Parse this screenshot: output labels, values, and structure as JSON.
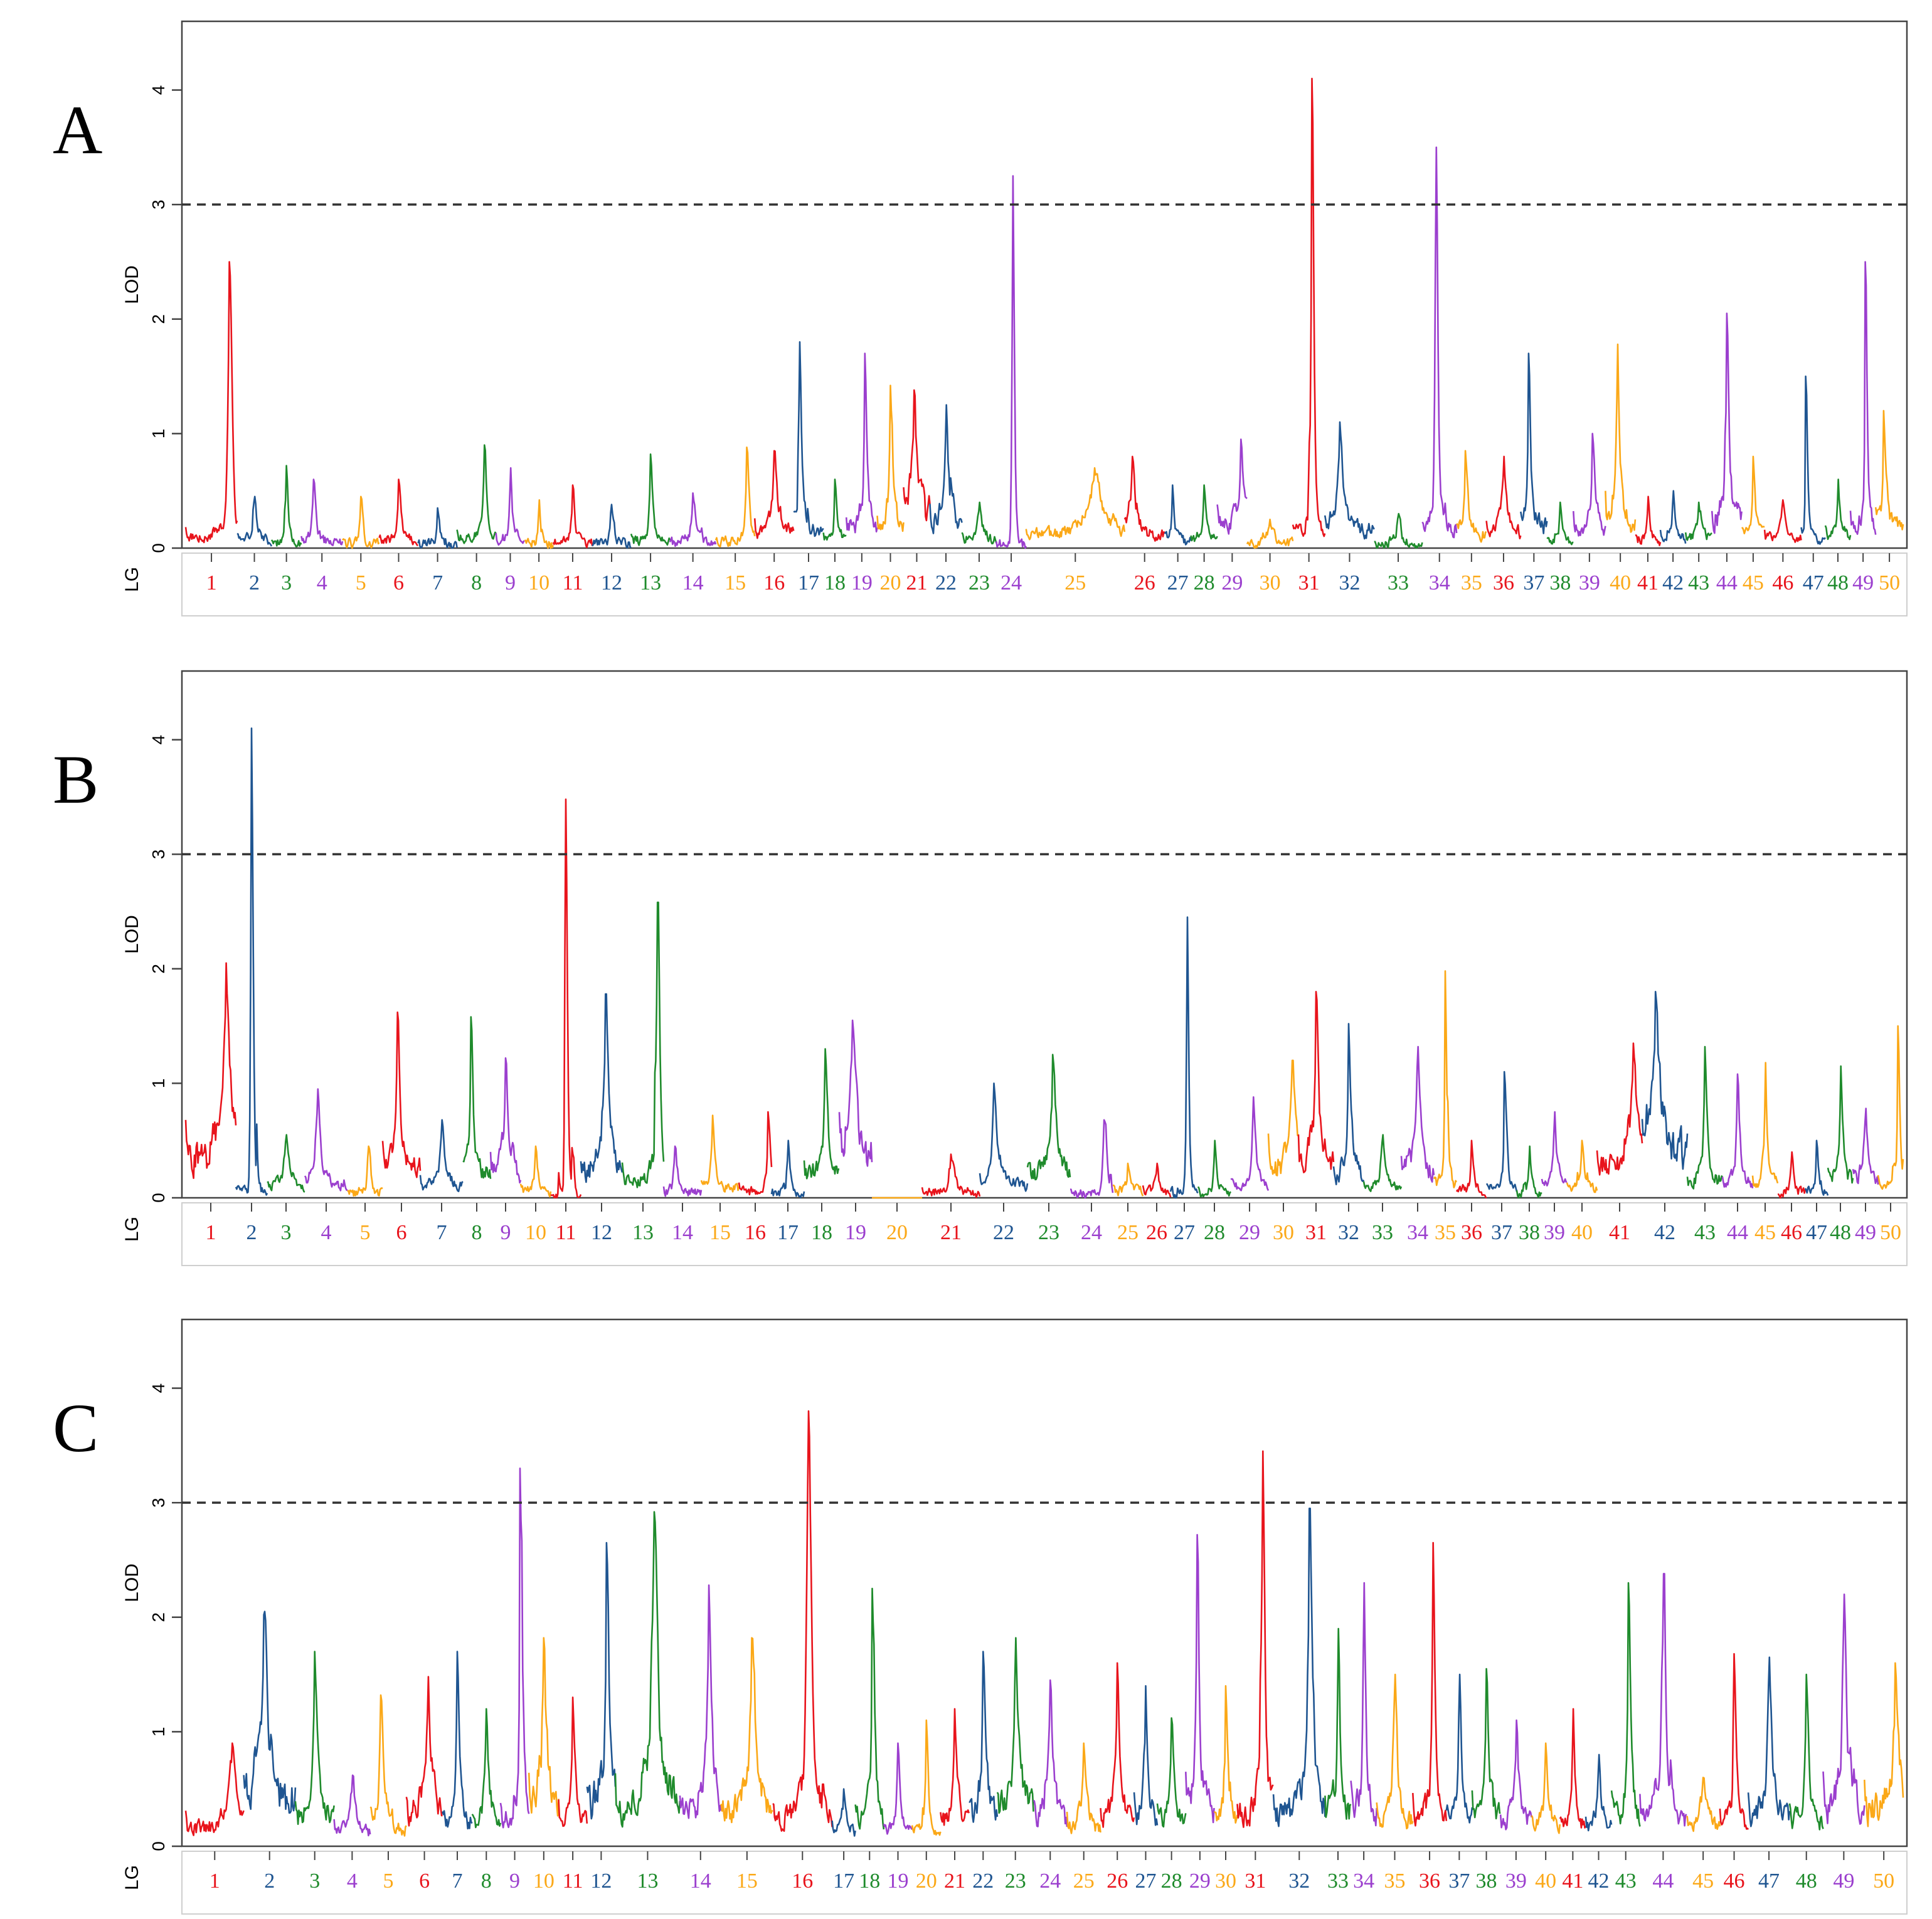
{
  "figure": {
    "description_free": true
  },
  "palette": [
    "#e8141c",
    "#1f5591",
    "#1f8b2c",
    "#9b3fce",
    "#fba817"
  ],
  "chart_data": [
    {
      "type": "line",
      "panel": "A",
      "ylabel": "LOD",
      "xlabel": "LG",
      "ylim": [
        0,
        4.6
      ],
      "yticks": [
        0,
        1,
        2,
        3,
        4
      ],
      "threshold": 3,
      "lg_labels": [
        "1",
        "2",
        "3",
        "4",
        "5",
        "6",
        "7",
        "8",
        "9",
        "10",
        "11",
        "12",
        "13",
        "14",
        "15",
        "16",
        "17",
        "18",
        "19",
        "20",
        "21",
        "22",
        "23",
        "24",
        "25",
        "26",
        "27",
        "28",
        "29",
        "30",
        "31",
        "32",
        "33",
        "34",
        "35",
        "36",
        "37",
        "38",
        "39",
        "40",
        "41",
        "42",
        "43",
        "44",
        "45",
        "46",
        "47",
        "48",
        "49",
        "50"
      ],
      "lg_widths": [
        4.5,
        3,
        2.6,
        3.6,
        3.2,
        3.4,
        3.4,
        3.4,
        2.5,
        2.5,
        3.4,
        3.4,
        3.4,
        4,
        3.4,
        3.4,
        2.6,
        2,
        2.7,
        2.3,
        2.3,
        2.8,
        3,
        2.6,
        8.6,
        3.5,
        2.3,
        2.3,
        2.6,
        4,
        2.8,
        4.3,
        4.2,
        3,
        2.6,
        3,
        2.3,
        2.3,
        2.8,
        2.6,
        2.2,
        2.2,
        2.3,
        2.6,
        2,
        3.2,
        2.1,
        2.2,
        2.2,
        2.4
      ],
      "peaks": [
        2.5,
        0.45,
        0.72,
        0.6,
        0.45,
        0.6,
        0.35,
        0.9,
        0.7,
        0.42,
        0.55,
        0.38,
        0.82,
        0.48,
        0.88,
        0.85,
        1.8,
        0.6,
        1.7,
        1.42,
        1.38,
        1.25,
        0.4,
        3.25,
        0.7,
        0.8,
        0.55,
        0.55,
        0.95,
        0.25,
        4.1,
        1.1,
        0.3,
        3.5,
        0.85,
        0.8,
        1.7,
        0.4,
        1.0,
        1.78,
        0.45,
        0.5,
        0.4,
        2.05,
        0.8,
        0.42,
        1.5,
        0.6,
        2.5,
        1.2
      ],
      "peak_positions": [
        0.85,
        0.5,
        0.5,
        0.3,
        0.5,
        0.5,
        0.5,
        0.7,
        0.5,
        0.5,
        0.5,
        0.5,
        0.5,
        0.5,
        0.8,
        0.5,
        0.2,
        0.5,
        0.6,
        0.5,
        0.4,
        0.5,
        0.5,
        0.55,
        0.7,
        0.2,
        0.3,
        0.5,
        0.8,
        0.5,
        0.6,
        0.3,
        0.5,
        0.4,
        0.3,
        0.5,
        0.3,
        0.5,
        0.6,
        0.4,
        0.5,
        0.5,
        0.5,
        0.5,
        0.5,
        0.5,
        0.2,
        0.5,
        0.6,
        0.3
      ],
      "base_levels": [
        0.25,
        0.15,
        0.1,
        0.12,
        0.08,
        0.15,
        0.08,
        0.2,
        0.15,
        0.08,
        0.1,
        0.08,
        0.15,
        0.12,
        0.15,
        0.35,
        0.4,
        0.2,
        0.45,
        0.5,
        0.8,
        0.5,
        0.18,
        0.05,
        0.3,
        0.3,
        0.15,
        0.2,
        0.5,
        0.1,
        0.35,
        0.4,
        0.08,
        0.4,
        0.3,
        0.35,
        0.5,
        0.15,
        0.4,
        0.6,
        0.15,
        0.2,
        0.2,
        0.6,
        0.3,
        0.2,
        0.2,
        0.25,
        0.4,
        0.45
      ]
    },
    {
      "type": "line",
      "panel": "B",
      "ylabel": "LOD",
      "xlabel": "LG",
      "ylim": [
        0,
        4.6
      ],
      "yticks": [
        0,
        1,
        2,
        3,
        4
      ],
      "threshold": 3,
      "lg_labels": [
        "1",
        "2",
        "3",
        "4",
        "5",
        "6",
        "7",
        "8",
        "9",
        "10",
        "11",
        "12",
        "13",
        "14",
        "15",
        "16",
        "17",
        "18",
        "19",
        "20",
        "21",
        "22",
        "23",
        "24",
        "25",
        "26",
        "27",
        "28",
        "29",
        "30",
        "31",
        "32",
        "33",
        "34",
        "35",
        "36",
        "37",
        "38",
        "39",
        "40",
        "41",
        "42",
        "43",
        "44",
        "45",
        "46",
        "47",
        "48",
        "49",
        "50"
      ],
      "lg_widths": [
        4,
        2.5,
        3,
        3.4,
        2.8,
        3,
        3.4,
        2.2,
        2.4,
        2.4,
        2.4,
        3.3,
        3.3,
        3,
        3,
        2.6,
        2.6,
        2.8,
        2.6,
        4,
        4.6,
        3.8,
        3.4,
        3.4,
        2.4,
        2.2,
        2.2,
        2.6,
        3,
        2.4,
        2.8,
        2.4,
        3,
        2.6,
        1.8,
        2.4,
        2.4,
        2,
        2,
        2.4,
        3.6,
        3.6,
        2.8,
        2.4,
        2,
        2.2,
        1.8,
        2,
        2,
        2
      ],
      "peaks": [
        2.05,
        4.1,
        0.55,
        0.95,
        0.45,
        1.62,
        0.68,
        1.58,
        1.22,
        0.45,
        3.48,
        1.78,
        2.58,
        0.45,
        0.72,
        0.75,
        0.5,
        1.3,
        1.55,
        0.0,
        0.38,
        1.0,
        1.25,
        0.68,
        0.3,
        0.3,
        2.45,
        0.5,
        0.88,
        1.2,
        1.8,
        1.52,
        0.55,
        1.32,
        1.98,
        0.5,
        1.1,
        0.45,
        0.75,
        0.5,
        1.35,
        1.8,
        1.32,
        1.08,
        1.18,
        0.4,
        0.5,
        1.15,
        0.78,
        1.5
      ],
      "peak_positions": [
        0.8,
        0.5,
        0.5,
        0.3,
        0.6,
        0.4,
        0.5,
        0.3,
        0.5,
        0.5,
        0.5,
        0.6,
        0.85,
        0.3,
        0.3,
        0.9,
        0.5,
        0.6,
        0.4,
        0.5,
        0.5,
        0.3,
        0.6,
        0.8,
        0.5,
        0.5,
        0.6,
        0.5,
        0.6,
        0.8,
        0.5,
        0.5,
        0.5,
        0.5,
        0.5,
        0.5,
        0.6,
        0.5,
        0.5,
        0.5,
        0.8,
        0.3,
        0.5,
        0.5,
        0.5,
        0.5,
        0.5,
        0.5,
        0.5,
        0.8
      ],
      "base_levels": [
        0.9,
        0.1,
        0.25,
        0.3,
        0.1,
        0.6,
        0.25,
        0.5,
        0.6,
        0.15,
        0.05,
        0.6,
        0.4,
        0.1,
        0.2,
        0.15,
        0.1,
        0.5,
        0.9,
        0.0,
        0.1,
        0.3,
        0.5,
        0.08,
        0.12,
        0.12,
        0.1,
        0.1,
        0.25,
        0.7,
        0.7,
        0.5,
        0.2,
        0.6,
        0.3,
        0.12,
        0.2,
        0.1,
        0.3,
        0.2,
        0.7,
        1.0,
        0.35,
        0.3,
        0.3,
        0.1,
        0.15,
        0.4,
        0.4,
        0.3
      ]
    },
    {
      "type": "line",
      "panel": "C",
      "ylabel": "LOD",
      "xlabel": "LG",
      "ylim": [
        0,
        4.6
      ],
      "yticks": [
        0,
        1,
        2,
        3,
        4
      ],
      "threshold": 3,
      "lg_labels": [
        "1",
        "2",
        "3",
        "4",
        "5",
        "6",
        "7",
        "8",
        "9",
        "10",
        "11",
        "12",
        "13",
        "14",
        "15",
        "16",
        "17",
        "18",
        "19",
        "20",
        "21",
        "22",
        "23",
        "24",
        "25",
        "26",
        "27",
        "28",
        "29",
        "30",
        "31",
        "32",
        "33",
        "34",
        "35",
        "36",
        "37",
        "38",
        "39",
        "40",
        "41",
        "42",
        "43",
        "44",
        "45",
        "46",
        "47",
        "48",
        "49",
        "50"
      ],
      "lg_widths": [
        4.5,
        4,
        3,
        2.8,
        2.8,
        2.8,
        2.3,
        2.2,
        2.2,
        2.3,
        2.2,
        2.2,
        5,
        3.2,
        4,
        4.6,
        1.8,
        2.2,
        2.2,
        2.2,
        2.2,
        2.2,
        2.8,
        2.6,
        2.6,
        2.6,
        1.8,
        2.2,
        2.2,
        1.8,
        2.8,
        4,
        2,
        2,
        2.8,
        2.6,
        2,
        2.2,
        2.4,
        2.2,
        2,
        2,
        2.2,
        3.6,
        2.6,
        2.2,
        3.2,
        2.6,
        3.2,
        3
      ],
      "peaks": [
        0.9,
        2.05,
        1.7,
        0.62,
        1.32,
        1.48,
        1.7,
        1.2,
        3.3,
        1.82,
        1.3,
        2.65,
        2.92,
        2.28,
        1.82,
        3.8,
        0.5,
        2.25,
        0.9,
        1.1,
        1.2,
        1.7,
        1.82,
        1.45,
        0.9,
        1.6,
        1.4,
        1.12,
        2.72,
        1.4,
        3.45,
        2.95,
        1.9,
        2.3,
        1.5,
        2.65,
        1.5,
        1.55,
        1.1,
        0.9,
        1.2,
        0.8,
        2.3,
        2.38,
        0.6,
        1.68,
        1.65,
        1.5,
        2.2,
        1.6
      ],
      "peak_positions": [
        0.8,
        0.4,
        0.5,
        0.5,
        0.3,
        0.6,
        0.5,
        0.5,
        0.7,
        0.5,
        0.5,
        0.7,
        0.6,
        0.7,
        0.6,
        0.6,
        0.5,
        0.6,
        0.5,
        0.5,
        0.5,
        0.5,
        0.5,
        0.5,
        0.5,
        0.5,
        0.5,
        0.5,
        0.4,
        0.5,
        0.7,
        0.7,
        0.5,
        0.5,
        0.5,
        0.6,
        0.5,
        0.5,
        0.5,
        0.5,
        0.5,
        0.5,
        0.6,
        0.5,
        0.5,
        0.5,
        0.5,
        0.5,
        0.5,
        0.8
      ],
      "base_levels": [
        0.4,
        1.0,
        0.6,
        0.3,
        0.5,
        0.7,
        0.5,
        0.5,
        0.6,
        0.9,
        0.5,
        1.0,
        0.9,
        0.8,
        0.7,
        0.6,
        0.3,
        0.6,
        0.3,
        0.3,
        0.5,
        0.7,
        0.8,
        0.6,
        0.4,
        0.6,
        0.6,
        0.5,
        0.8,
        0.5,
        0.7,
        0.7,
        0.7,
        0.7,
        0.5,
        0.6,
        0.6,
        0.6,
        0.5,
        0.4,
        0.4,
        0.4,
        0.6,
        0.6,
        0.4,
        0.5,
        0.6,
        0.5,
        0.8,
        0.8
      ]
    }
  ]
}
